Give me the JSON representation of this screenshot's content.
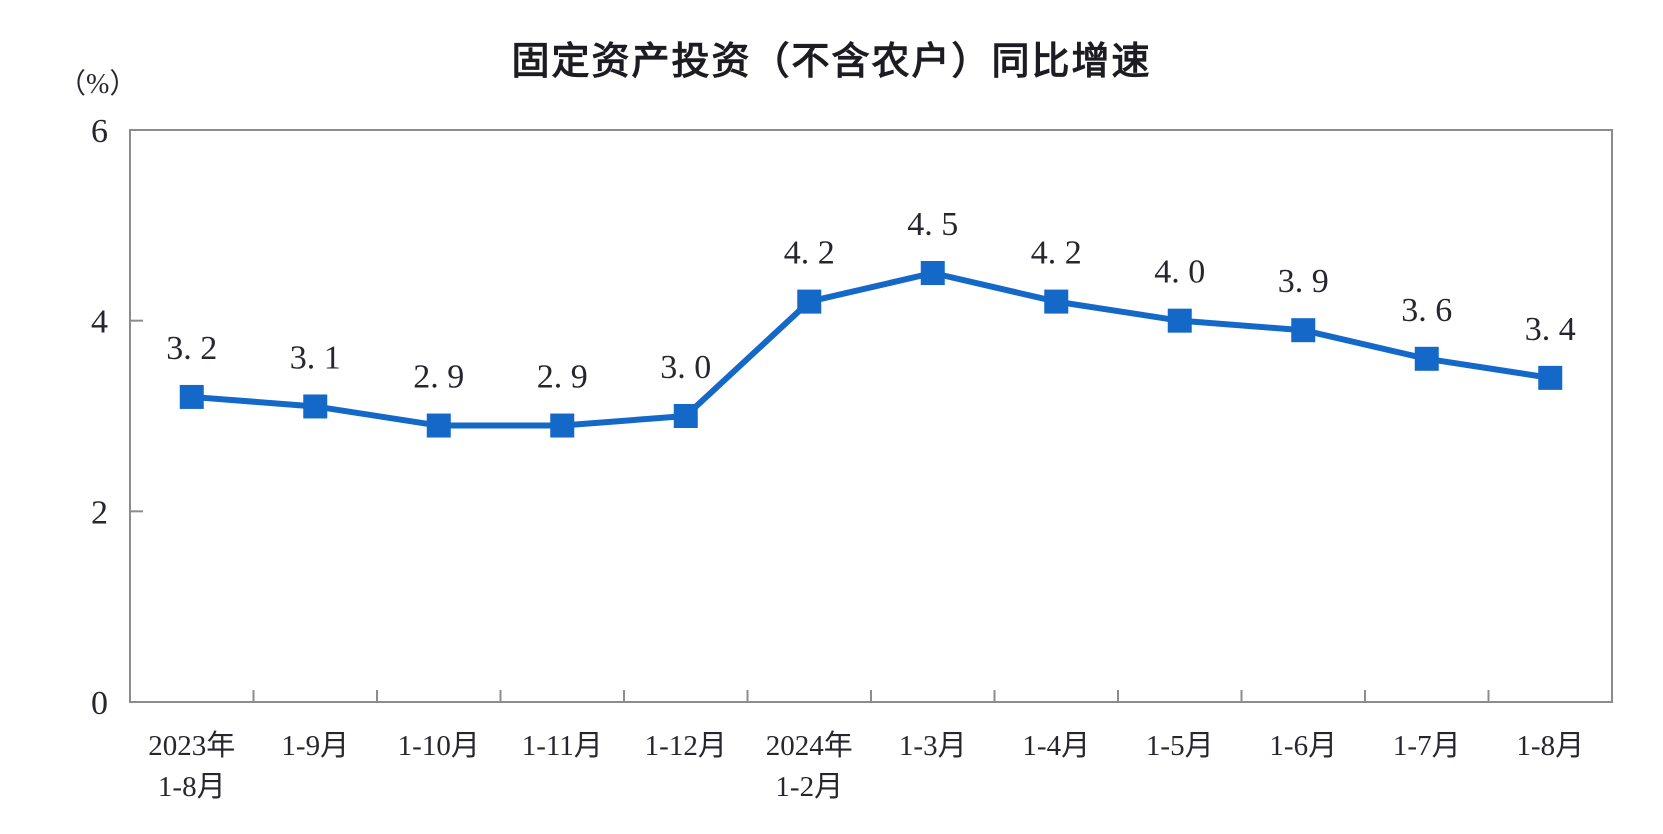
{
  "title": "固定资产投资（不含农户）同比增速",
  "y_unit_label": "（%）",
  "chart_data": {
    "type": "line",
    "title": "固定资产投资（不含农户）同比增速",
    "ylabel": "（%）",
    "xlabel": "",
    "categories": [
      [
        "2023年",
        "1-8月"
      ],
      [
        "1-9月"
      ],
      [
        "1-10月"
      ],
      [
        "1-11月"
      ],
      [
        "1-12月"
      ],
      [
        "2024年",
        "1-2月"
      ],
      [
        "1-3月"
      ],
      [
        "1-4月"
      ],
      [
        "1-5月"
      ],
      [
        "1-6月"
      ],
      [
        "1-7月"
      ],
      [
        "1-8月"
      ]
    ],
    "values": [
      3.2,
      3.1,
      2.9,
      2.9,
      3.0,
      4.2,
      4.5,
      4.2,
      4.0,
      3.9,
      3.6,
      3.4
    ],
    "value_labels": [
      "3. 2",
      "3. 1",
      "2. 9",
      "2. 9",
      "3. 0",
      "4. 2",
      "4. 5",
      "4. 2",
      "4. 0",
      "3. 9",
      "3. 6",
      "3. 4"
    ],
    "ylim": [
      0,
      6
    ],
    "yticks": [
      0,
      2,
      4,
      6
    ],
    "grid": false,
    "legend": "none",
    "marker": "square",
    "colors": {
      "line": "#1469c8",
      "axis": "#8c8c8c",
      "text": "#26262e",
      "title": "#1c1c22"
    }
  }
}
